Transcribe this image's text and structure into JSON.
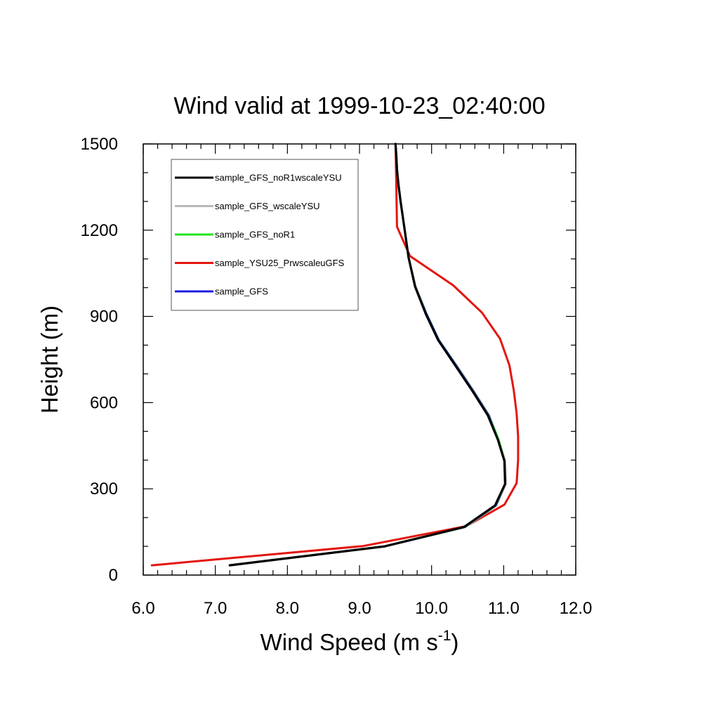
{
  "chart_data": {
    "type": "line",
    "title": "Wind valid at 1999-10-23_02:40:00",
    "xlabel": "Wind Speed (m s",
    "xlabel_sup": "-1",
    "xlabel_end": ")",
    "ylabel": "Height (m)",
    "xlim": [
      6.0,
      12.0
    ],
    "ylim": [
      0,
      1500
    ],
    "x_ticks": [
      6.0,
      7.0,
      8.0,
      9.0,
      10.0,
      11.0,
      12.0
    ],
    "x_tick_labels": [
      "6.0",
      "7.0",
      "8.0",
      "9.0",
      "10.0",
      "11.0",
      "12.0"
    ],
    "y_ticks": [
      0,
      300,
      600,
      900,
      1200,
      1500
    ],
    "y_tick_labels": [
      "0",
      "300",
      "600",
      "900",
      "1200",
      "1500"
    ],
    "grid": false,
    "legend_position": "top-left",
    "series": [
      {
        "name": "sample_GFS_noR1wscaleYSU",
        "color": "#000000",
        "x": [
          7.2,
          9.35,
          10.45,
          10.88,
          11.02,
          11.01,
          10.92,
          10.78,
          10.57,
          10.33,
          10.09,
          9.92,
          9.77,
          9.68,
          9.62,
          9.57,
          9.54,
          9.52,
          9.51,
          9.5
        ],
        "y": [
          34,
          100,
          167,
          242,
          317,
          397,
          471,
          556,
          639,
          729,
          818,
          908,
          1004,
          1106,
          1212,
          1300,
          1360,
          1410,
          1460,
          1500
        ]
      },
      {
        "name": "sample_GFS_wscaleYSU",
        "color": "#b9b9b9",
        "x": [
          7.2,
          9.35,
          10.47,
          10.9,
          11.03,
          11.02,
          10.93,
          10.8,
          10.59,
          10.35,
          10.1,
          9.93,
          9.78,
          9.68,
          9.62,
          9.57,
          9.54,
          9.52,
          9.51,
          9.5
        ],
        "y": [
          34,
          100,
          167,
          242,
          317,
          397,
          471,
          556,
          639,
          729,
          818,
          908,
          1004,
          1106,
          1212,
          1300,
          1360,
          1410,
          1460,
          1500
        ]
      },
      {
        "name": "sample_GFS_noR1",
        "color": "#22e51d",
        "x": [
          7.2,
          9.35,
          10.46,
          10.89,
          11.02,
          11.01,
          10.93,
          10.79,
          10.58,
          10.34,
          10.1,
          9.93,
          9.77,
          9.68,
          9.62,
          9.57,
          9.54,
          9.52,
          9.51,
          9.5
        ],
        "y": [
          34,
          100,
          167,
          242,
          317,
          397,
          471,
          556,
          639,
          729,
          818,
          908,
          1004,
          1106,
          1212,
          1300,
          1360,
          1410,
          1460,
          1500
        ]
      },
      {
        "name": "sample_YSU25_PrwscaleuGFS",
        "color": "#e4150f",
        "x": [
          6.12,
          9.05,
          10.48,
          11.01,
          11.18,
          11.2,
          11.2,
          11.18,
          11.14,
          11.08,
          10.95,
          10.7,
          10.3,
          9.7,
          9.52,
          9.51,
          9.5
        ],
        "y": [
          34,
          101,
          170,
          245,
          320,
          401,
          482,
          562,
          643,
          730,
          822,
          913,
          1008,
          1110,
          1212,
          1360,
          1500
        ]
      },
      {
        "name": "sample_GFS",
        "color": "#1d1dde",
        "x": [
          7.2,
          9.35,
          10.46,
          10.89,
          11.02,
          11.01,
          10.92,
          10.79,
          10.58,
          10.34,
          10.1,
          9.93,
          9.77,
          9.68,
          9.62,
          9.57,
          9.54,
          9.52,
          9.51,
          9.5
        ],
        "y": [
          34,
          100,
          167,
          242,
          317,
          397,
          471,
          556,
          639,
          729,
          818,
          908,
          1004,
          1106,
          1212,
          1300,
          1360,
          1410,
          1460,
          1500
        ]
      }
    ]
  }
}
